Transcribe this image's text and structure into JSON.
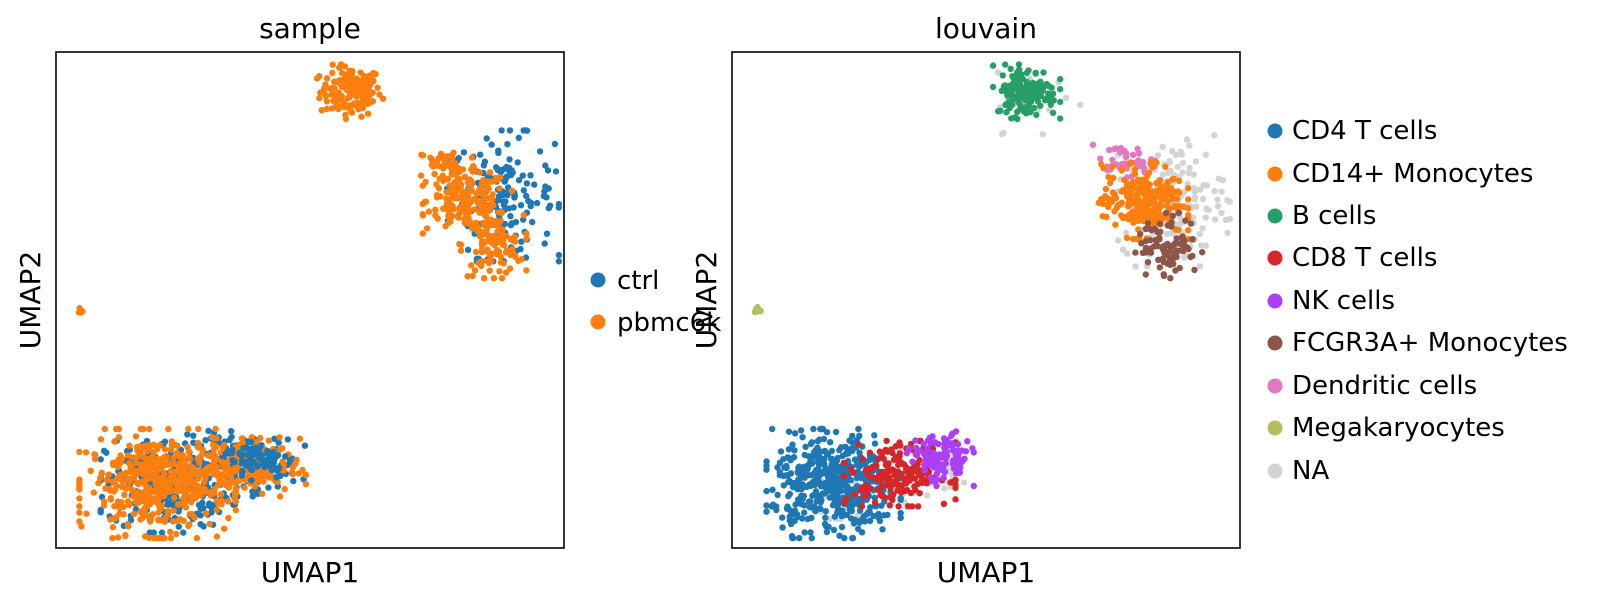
{
  "chart_data": [
    {
      "type": "scatter",
      "title": "sample",
      "xlabel": "UMAP1",
      "ylabel": "UMAP2",
      "ticks": "none",
      "grid": false,
      "legend_position": "right",
      "series": [
        {
          "name": "ctrl",
          "color": "#1f77b4"
        },
        {
          "name": "pbmc6k",
          "color": "#ff7f0e"
        }
      ],
      "legend_labels": [
        "ctrl",
        "pbmc6k"
      ],
      "xlim": [
        0,
        1
      ],
      "ylim": [
        0,
        1
      ],
      "clusters": [
        {
          "series": "pbmc6k",
          "x": 0.58,
          "y": 0.92,
          "sx": 0.03,
          "sy": 0.025,
          "n": 150
        },
        {
          "series": "ctrl",
          "x": 0.88,
          "y": 0.71,
          "sx": 0.05,
          "sy": 0.06,
          "n": 170
        },
        {
          "series": "pbmc6k",
          "x": 0.81,
          "y": 0.7,
          "sx": 0.04,
          "sy": 0.03,
          "n": 170
        },
        {
          "series": "pbmc6k",
          "x": 0.86,
          "y": 0.61,
          "sx": 0.03,
          "sy": 0.03,
          "n": 110
        },
        {
          "series": "pbmc6k",
          "x": 0.77,
          "y": 0.77,
          "sx": 0.03,
          "sy": 0.02,
          "n": 50
        },
        {
          "series": "pbmc6k",
          "x": 0.05,
          "y": 0.48,
          "sx": 0.004,
          "sy": 0.004,
          "n": 6
        },
        {
          "series": "ctrl",
          "x": 0.22,
          "y": 0.13,
          "sx": 0.06,
          "sy": 0.045,
          "n": 280
        },
        {
          "series": "ctrl",
          "x": 0.38,
          "y": 0.17,
          "sx": 0.05,
          "sy": 0.03,
          "n": 140
        },
        {
          "series": "pbmc6k",
          "x": 0.2,
          "y": 0.13,
          "sx": 0.07,
          "sy": 0.05,
          "n": 430
        },
        {
          "series": "pbmc6k",
          "x": 0.36,
          "y": 0.16,
          "sx": 0.06,
          "sy": 0.03,
          "n": 180
        },
        {
          "series": "ctrl",
          "x": 0.4,
          "y": 0.18,
          "sx": 0.03,
          "sy": 0.02,
          "n": 70
        }
      ]
    },
    {
      "type": "scatter",
      "title": "louvain",
      "xlabel": "UMAP1",
      "ylabel": "UMAP2",
      "ticks": "none",
      "grid": false,
      "legend_position": "right",
      "series": [
        {
          "name": "CD4 T cells",
          "color": "#1f77b4"
        },
        {
          "name": "CD14+ Monocytes",
          "color": "#ff7f0e"
        },
        {
          "name": "B cells",
          "color": "#279e68"
        },
        {
          "name": "CD8 T cells",
          "color": "#d62728"
        },
        {
          "name": "NK cells",
          "color": "#aa40fc"
        },
        {
          "name": "FCGR3A+ Monocytes",
          "color": "#8c564b"
        },
        {
          "name": "Dendritic cells",
          "color": "#e377c2"
        },
        {
          "name": "Megakaryocytes",
          "color": "#b5bd61"
        },
        {
          "name": "NA",
          "color": "#d3d3d3"
        }
      ],
      "legend_labels": [
        "CD4 T cells",
        "CD14+ Monocytes",
        "B cells",
        "CD8 T cells",
        "NK cells",
        "FCGR3A+ Monocytes",
        "Dendritic cells",
        "Megakaryocytes",
        "NA"
      ],
      "xlim": [
        0,
        1
      ],
      "ylim": [
        0,
        1
      ],
      "clusters": [
        {
          "series": "NA",
          "x": 0.6,
          "y": 0.9,
          "sx": 0.04,
          "sy": 0.03,
          "n": 25
        },
        {
          "series": "B cells",
          "x": 0.58,
          "y": 0.92,
          "sx": 0.03,
          "sy": 0.025,
          "n": 150
        },
        {
          "series": "NA",
          "x": 0.87,
          "y": 0.7,
          "sx": 0.05,
          "sy": 0.06,
          "n": 150
        },
        {
          "series": "Dendritic cells",
          "x": 0.77,
          "y": 0.78,
          "sx": 0.03,
          "sy": 0.015,
          "n": 40
        },
        {
          "series": "CD14+ Monocytes",
          "x": 0.81,
          "y": 0.7,
          "sx": 0.04,
          "sy": 0.035,
          "n": 240
        },
        {
          "series": "FCGR3A+ Monocytes",
          "x": 0.86,
          "y": 0.61,
          "sx": 0.03,
          "sy": 0.03,
          "n": 90
        },
        {
          "series": "Megakaryocytes",
          "x": 0.05,
          "y": 0.48,
          "sx": 0.004,
          "sy": 0.004,
          "n": 6
        },
        {
          "series": "NA",
          "x": 0.23,
          "y": 0.1,
          "sx": 0.05,
          "sy": 0.03,
          "n": 30
        },
        {
          "series": "NA",
          "x": 0.4,
          "y": 0.16,
          "sx": 0.04,
          "sy": 0.03,
          "n": 40
        },
        {
          "series": "CD4 T cells",
          "x": 0.2,
          "y": 0.13,
          "sx": 0.06,
          "sy": 0.05,
          "n": 470
        },
        {
          "series": "CD8 T cells",
          "x": 0.33,
          "y": 0.15,
          "sx": 0.05,
          "sy": 0.03,
          "n": 180
        },
        {
          "series": "NK cells",
          "x": 0.41,
          "y": 0.18,
          "sx": 0.03,
          "sy": 0.025,
          "n": 110
        }
      ]
    }
  ]
}
